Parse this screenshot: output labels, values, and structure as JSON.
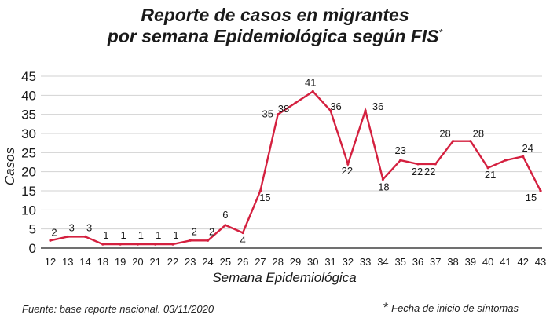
{
  "chart_data": {
    "type": "line",
    "title_line1": "Reporte de casos en migrantes",
    "title_line2": "por semana Epidemiológica según FIS",
    "title_mark": "*",
    "xlabel": "Semana Epidemiológica",
    "ylabel": "Casos",
    "ylim": [
      0,
      45
    ],
    "yticks": [
      "0",
      "5",
      "10",
      "15",
      "20",
      "25",
      "30",
      "35",
      "40",
      "45"
    ],
    "categories": [
      "12",
      "13",
      "14",
      "18",
      "19",
      "20",
      "21",
      "22",
      "23",
      "24",
      "25",
      "26",
      "27",
      "28",
      "29",
      "30",
      "31",
      "32",
      "33",
      "34",
      "35",
      "36",
      "37",
      "38",
      "39",
      "40",
      "41",
      "42",
      "43"
    ],
    "series": [
      {
        "name": "Casos",
        "color": "#d4203f",
        "values": [
          2,
          3,
          3,
          1,
          1,
          1,
          1,
          1,
          2,
          2,
          6,
          4,
          15,
          35,
          38,
          41,
          36,
          22,
          36,
          18,
          23,
          22,
          22,
          28,
          28,
          21,
          23,
          24,
          15
        ],
        "labels": [
          "2",
          "3",
          "3",
          "1",
          "1",
          "1",
          "1",
          "1",
          "2",
          "2",
          "6",
          "4",
          "15",
          "35",
          "38",
          "41",
          "36",
          "22",
          "36",
          "18",
          "23",
          "22",
          "22",
          "28",
          "28",
          "21",
          "",
          "24",
          "15"
        ]
      }
    ],
    "grid": true
  },
  "footer": {
    "source": "Fuente: base reporte nacional. 03/11/2020",
    "footnote_mark": "*",
    "footnote_text": "Fecha de inicio de síntomas"
  }
}
